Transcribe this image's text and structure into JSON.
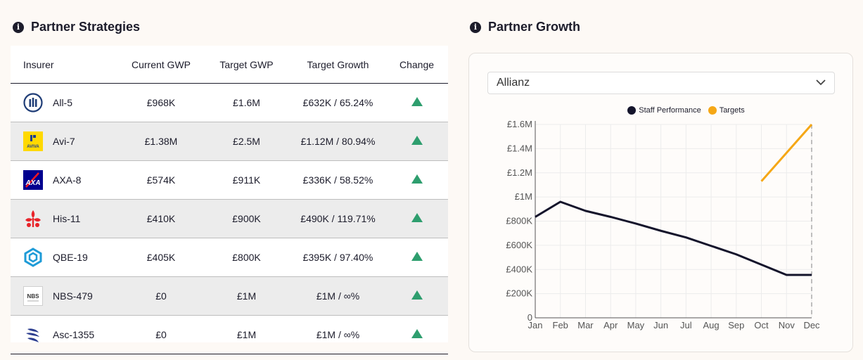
{
  "left_section": {
    "title": "Partner Strategies",
    "info_icon": "info-icon"
  },
  "right_section": {
    "title": "Partner Growth",
    "info_icon": "info-icon"
  },
  "table": {
    "headers": [
      "Insurer",
      "Current GWP",
      "Target GWP",
      "Target Growth",
      "Change"
    ],
    "rows": [
      {
        "insurer": "All-5",
        "current": "£968K",
        "target": "£1.6M",
        "growth": "£632K / 65.24%",
        "logo": "allianz-logo",
        "change": "up-arrow-icon"
      },
      {
        "insurer": "Avi-7",
        "current": "£1.38M",
        "target": "£2.5M",
        "growth": "£1.12M / 80.94%",
        "logo": "aviva-logo",
        "logo_text": "AVIVA",
        "change": "up-arrow-icon"
      },
      {
        "insurer": "AXA-8",
        "current": "£574K",
        "target": "£911K",
        "growth": "£336K / 58.52%",
        "logo": "axa-logo",
        "logo_text": "AXA",
        "change": "up-arrow-icon"
      },
      {
        "insurer": "His-11",
        "current": "£410K",
        "target": "£900K",
        "growth": "£490K / 119.71%",
        "logo": "hiscox-logo",
        "change": "up-arrow-icon"
      },
      {
        "insurer": "QBE-19",
        "current": "£405K",
        "target": "£800K",
        "growth": "£395K / 97.40%",
        "logo": "qbe-logo",
        "change": "up-arrow-icon"
      },
      {
        "insurer": "NBS-479",
        "current": "£0",
        "target": "£1M",
        "growth": "£1M / ∞%",
        "logo": "nbs-logo",
        "logo_text": "NBS",
        "change": "up-arrow-icon"
      },
      {
        "insurer": "Asc-1355",
        "current": "£0",
        "target": "£1M",
        "growth": "£1M / ∞%",
        "logo": "ascot-logo",
        "change": "up-arrow-icon"
      }
    ]
  },
  "chart_panel": {
    "select_value": "Allianz",
    "select_icon": "chevron-down-icon"
  },
  "colors": {
    "staff": "#14142b",
    "targets": "#f5a716",
    "up": "#2e9e6e"
  },
  "chart_data": {
    "type": "line",
    "categories": [
      "Jan",
      "Feb",
      "Mar",
      "Apr",
      "May",
      "Jun",
      "Jul",
      "Aug",
      "Sep",
      "Oct",
      "Nov",
      "Dec"
    ],
    "y_ticks": [
      "0",
      "£200K",
      "£400K",
      "£600K",
      "£800K",
      "£1M",
      "£1.2M",
      "£1.4M",
      "£1.6M"
    ],
    "ylim": [
      0,
      1600000
    ],
    "series": [
      {
        "name": "Staff Performance",
        "values": [
          835000,
          960000,
          885000,
          835000,
          780000,
          720000,
          665000,
          595000,
          525000,
          440000,
          355000,
          355000
        ]
      },
      {
        "name": "Targets",
        "values": [
          null,
          null,
          null,
          null,
          null,
          null,
          null,
          null,
          null,
          1130000,
          1365000,
          1600000
        ]
      }
    ],
    "grid": true,
    "legend_position": "top"
  }
}
